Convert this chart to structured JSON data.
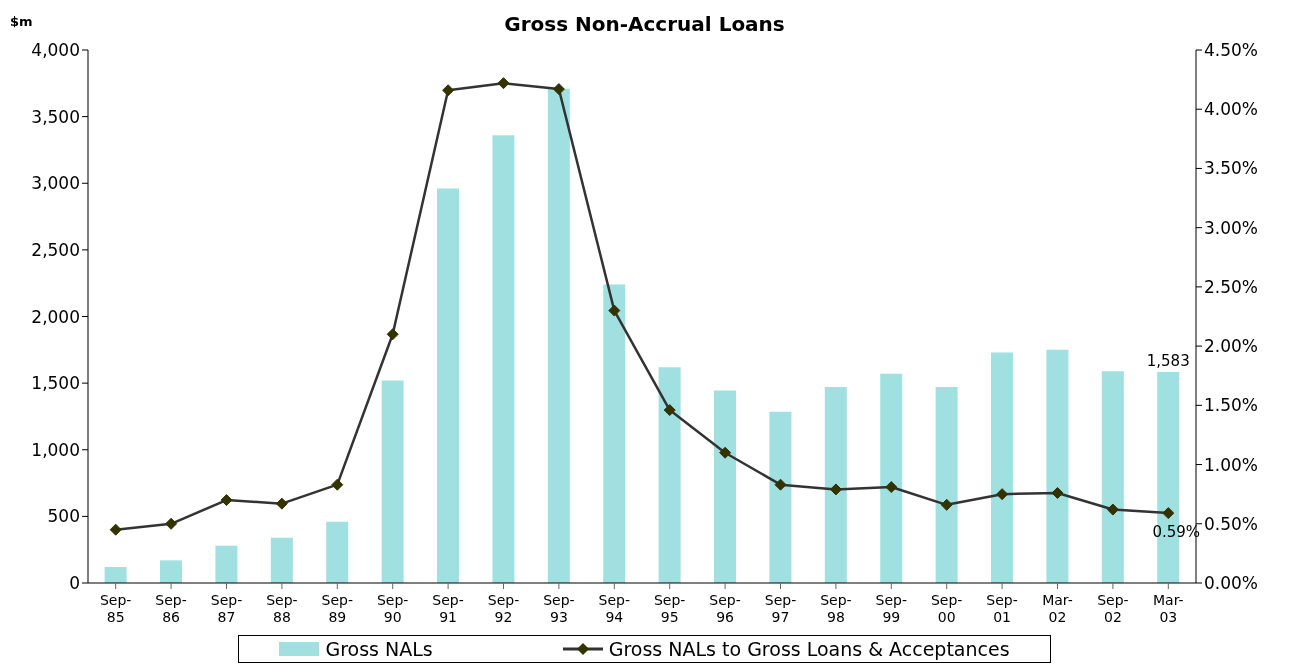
{
  "chart_data": {
    "type": "bar",
    "title": "Gross Non-Accrual Loans",
    "ylabel": "$m",
    "categories": [
      "Sep-85",
      "Sep-86",
      "Sep-87",
      "Sep-88",
      "Sep-89",
      "Sep-90",
      "Sep-91",
      "Sep-92",
      "Sep-93",
      "Sep-94",
      "Sep-95",
      "Sep-96",
      "Sep-97",
      "Sep-98",
      "Sep-99",
      "Sep-00",
      "Sep-01",
      "Mar-02",
      "Sep-02",
      "Mar-03"
    ],
    "series": [
      {
        "name": "Gross NALs",
        "color": "#a0e0e0",
        "values": [
          120,
          170,
          280,
          340,
          460,
          1520,
          2960,
          3360,
          3710,
          2240,
          1620,
          1445,
          1285,
          1470,
          1570,
          1470,
          1730,
          1750,
          1590,
          1583
        ],
        "value_labels": [
          null,
          null,
          null,
          null,
          null,
          null,
          null,
          null,
          null,
          null,
          null,
          null,
          null,
          null,
          null,
          null,
          null,
          null,
          null,
          "1,583"
        ]
      },
      {
        "name": "Gross NALs to Gross Loans & Acceptances",
        "type": "line",
        "axis": "y2",
        "color": "#333333",
        "values": [
          0.45,
          0.5,
          0.7,
          0.67,
          0.83,
          2.1,
          4.16,
          4.22,
          4.17,
          2.3,
          1.46,
          1.1,
          0.83,
          0.79,
          0.81,
          0.66,
          0.75,
          0.76,
          0.62,
          0.59
        ],
        "value_labels": [
          null,
          null,
          null,
          null,
          null,
          null,
          null,
          null,
          null,
          null,
          null,
          null,
          null,
          null,
          null,
          null,
          null,
          null,
          null,
          "0.59%"
        ]
      }
    ],
    "ylim": [
      0,
      4000
    ],
    "yticks": [
      {
        "value": 0,
        "label": "0"
      },
      {
        "value": 500,
        "label": "500"
      },
      {
        "value": 1000,
        "label": "1,000"
      },
      {
        "value": 1500,
        "label": "1,500"
      },
      {
        "value": 2000,
        "label": "2,000"
      },
      {
        "value": 2500,
        "label": "2,500"
      },
      {
        "value": 3000,
        "label": "3,000"
      },
      {
        "value": 3500,
        "label": "3,500"
      },
      {
        "value": 4000,
        "label": "4,000"
      }
    ],
    "y2lim": [
      0,
      4.5
    ],
    "y2ticks": [
      {
        "value": 0,
        "label": "0.00%"
      },
      {
        "value": 0.5,
        "label": "0.50%"
      },
      {
        "value": 1,
        "label": "1.00%"
      },
      {
        "value": 1.5,
        "label": "1.50%"
      },
      {
        "value": 2,
        "label": "2.00%"
      },
      {
        "value": 2.5,
        "label": "2.50%"
      },
      {
        "value": 3,
        "label": "3.00%"
      },
      {
        "value": 3.5,
        "label": "3.50%"
      },
      {
        "value": 4,
        "label": "4.00%"
      },
      {
        "value": 4.5,
        "label": "4.50%"
      }
    ],
    "legend": "bottom",
    "marker": "diamond"
  }
}
